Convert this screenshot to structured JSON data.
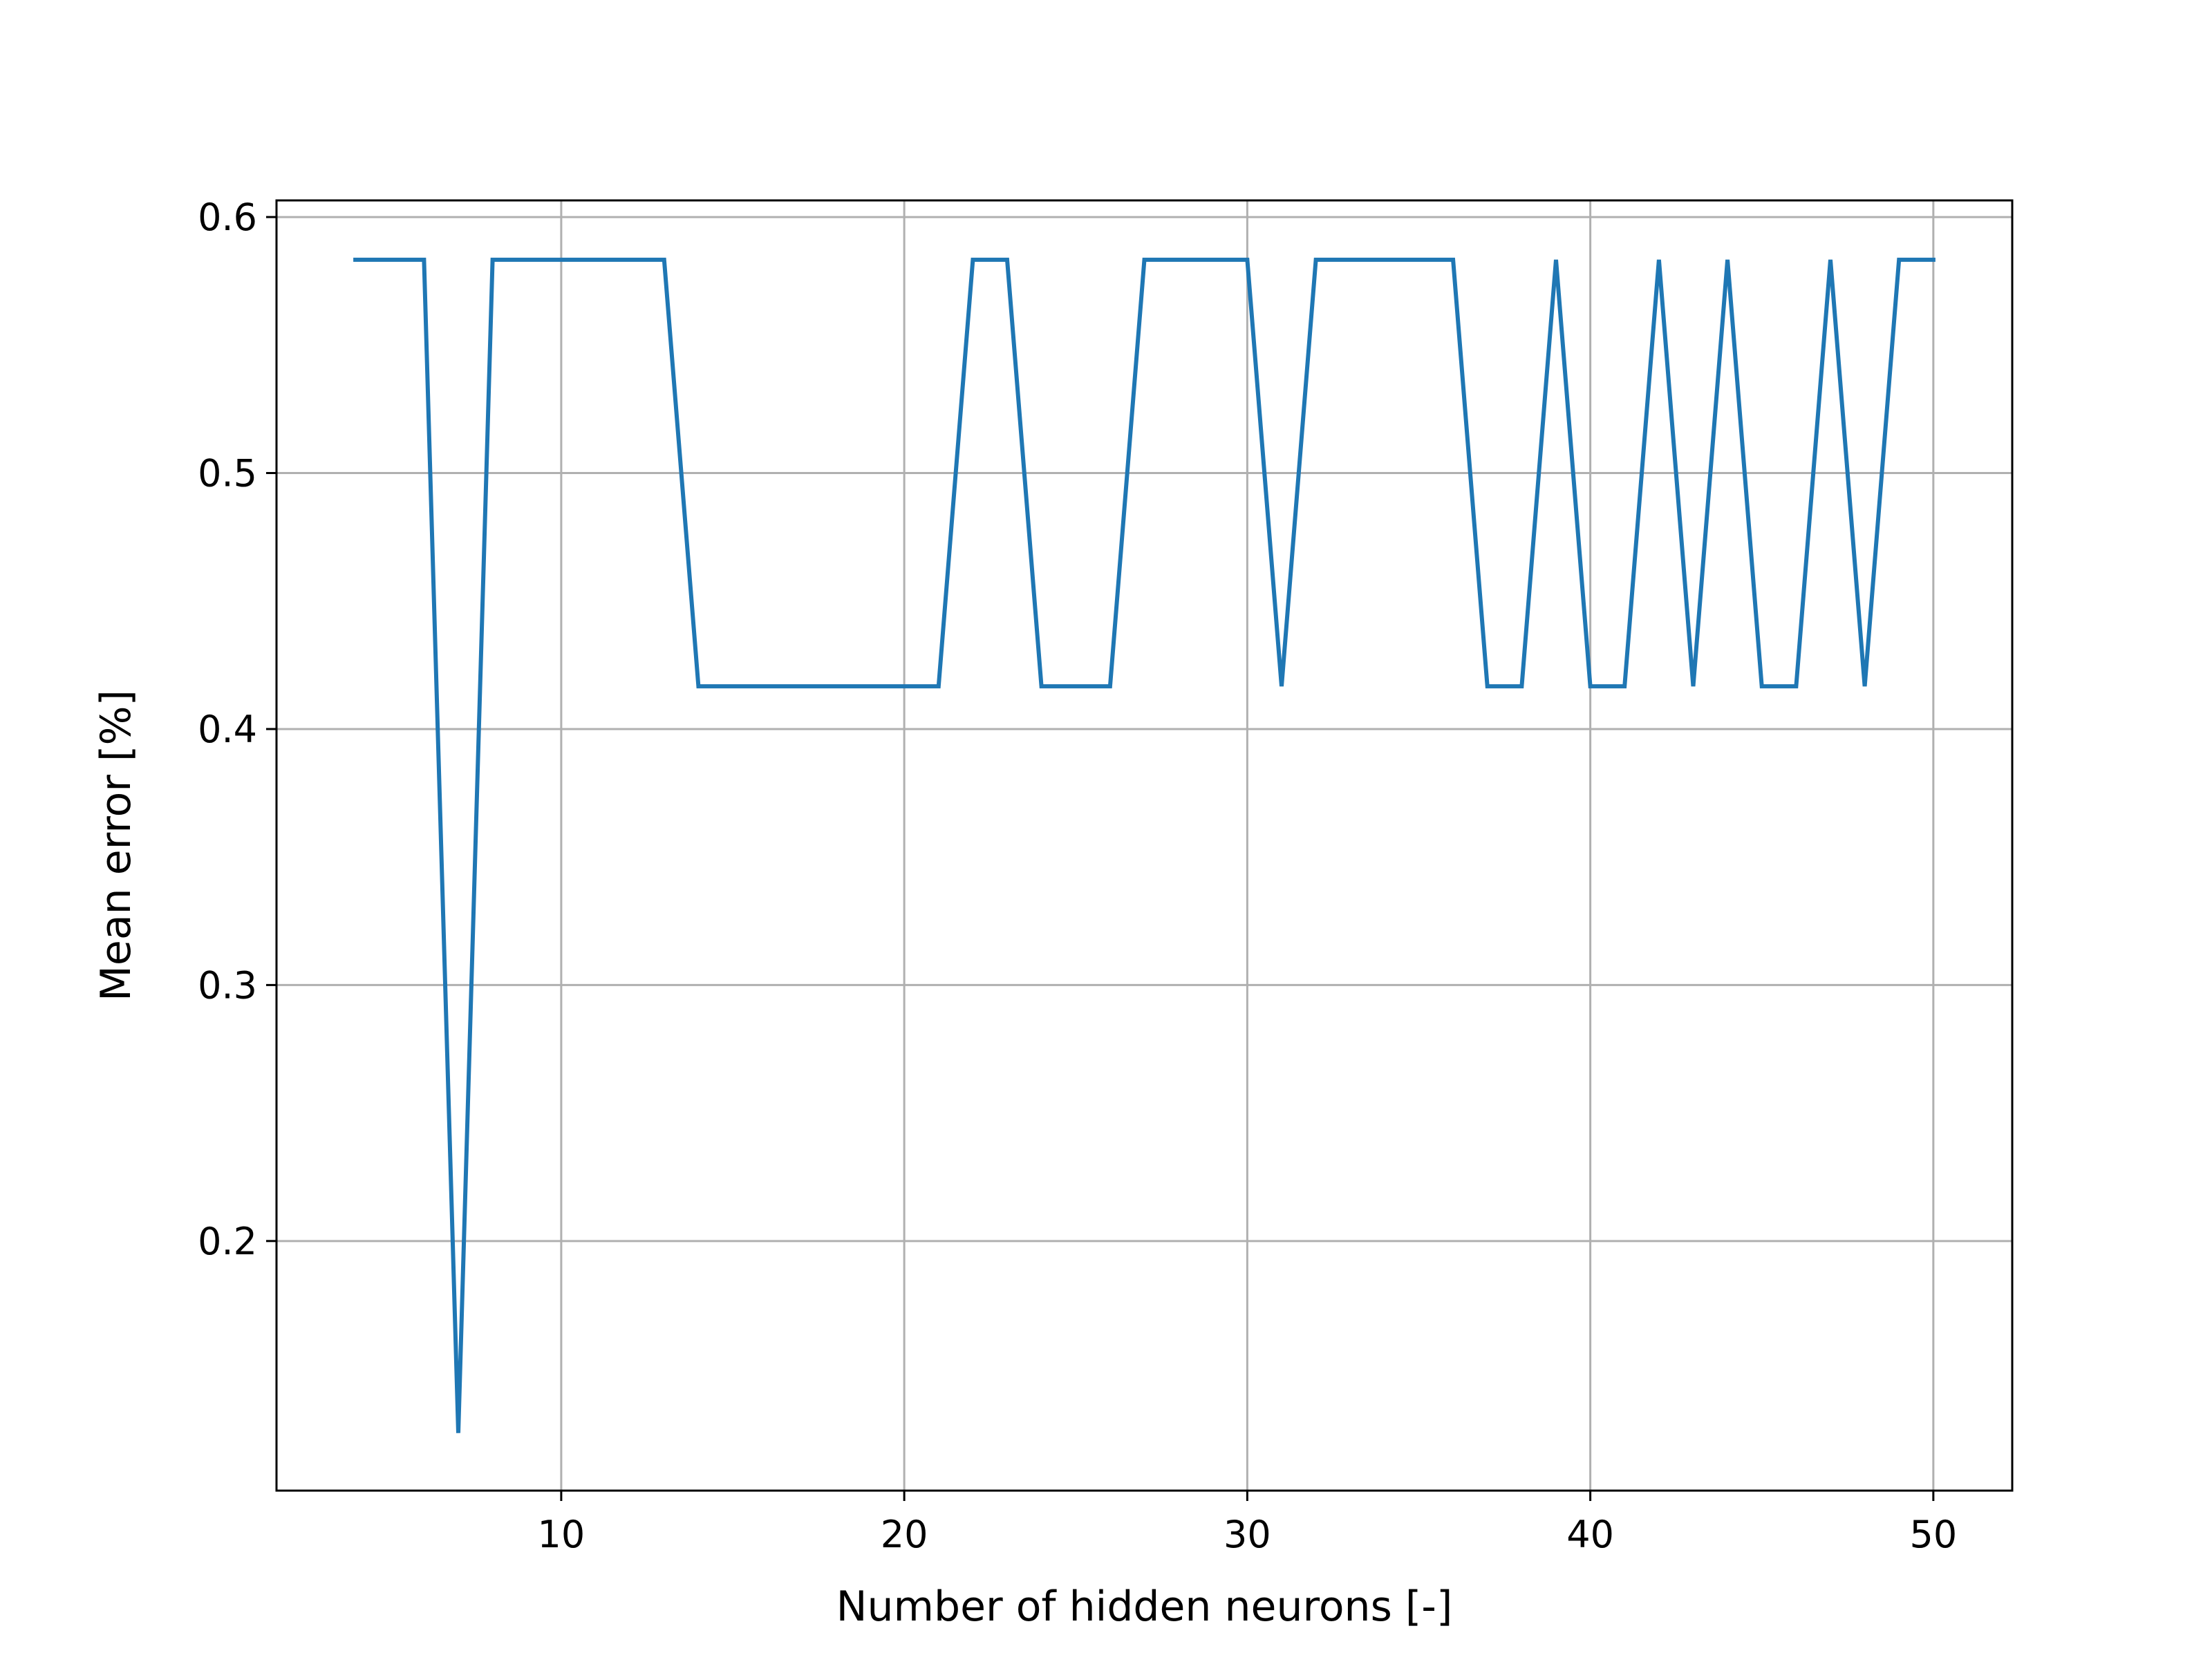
{
  "chart_data": {
    "type": "line",
    "xlabel": "Number of hidden neurons [-]",
    "ylabel": "Mean error [%]",
    "xlim": [
      1.7,
      52.3
    ],
    "ylim": [
      0.1025,
      0.6065
    ],
    "xticks": [
      10,
      20,
      30,
      40,
      50
    ],
    "xtick_labels": [
      "10",
      "20",
      "30",
      "40",
      "50"
    ],
    "yticks": [
      0.2,
      0.3,
      0.4,
      0.5,
      0.6
    ],
    "ytick_labels": [
      "0.2",
      "0.3",
      "0.4",
      "0.5",
      "0.6"
    ],
    "grid": true,
    "series": [
      {
        "color": "#1f77b4",
        "x": [
          4,
          5,
          6,
          7,
          8,
          9,
          10,
          11,
          12,
          13,
          14,
          15,
          16,
          17,
          18,
          19,
          20,
          21,
          22,
          23,
          24,
          25,
          26,
          27,
          28,
          29,
          30,
          31,
          32,
          33,
          34,
          35,
          36,
          37,
          38,
          39,
          40,
          41,
          42,
          43,
          44,
          45,
          46,
          47,
          48,
          49,
          50
        ],
        "y": [
          0.5833,
          0.5833,
          0.5833,
          0.125,
          0.5833,
          0.5833,
          0.5833,
          0.5833,
          0.5833,
          0.5833,
          0.4167,
          0.4167,
          0.4167,
          0.4167,
          0.4167,
          0.4167,
          0.4167,
          0.4167,
          0.5833,
          0.5833,
          0.4167,
          0.4167,
          0.4167,
          0.5833,
          0.5833,
          0.5833,
          0.5833,
          0.4167,
          0.5833,
          0.5833,
          0.5833,
          0.5833,
          0.5833,
          0.4167,
          0.4167,
          0.5833,
          0.4167,
          0.4167,
          0.5833,
          0.4167,
          0.5833,
          0.4167,
          0.4167,
          0.5833,
          0.4167,
          0.5833,
          0.5833
        ]
      }
    ]
  }
}
